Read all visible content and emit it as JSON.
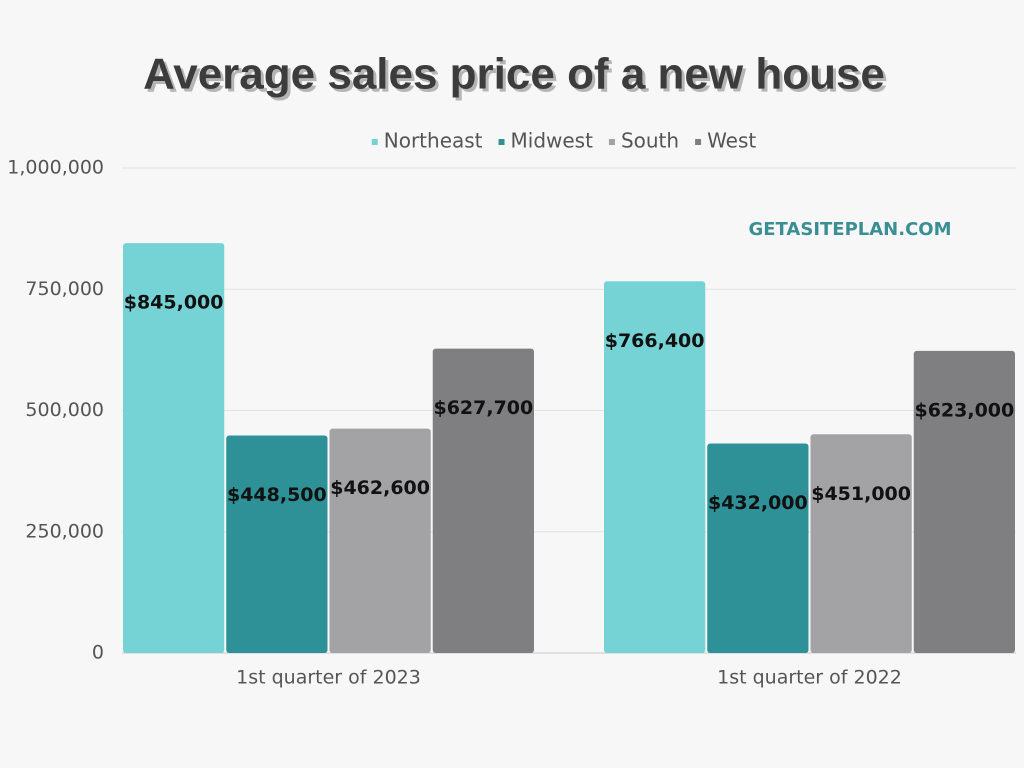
{
  "chart_data": {
    "type": "bar",
    "title": "Average sales price of a new house",
    "categories": [
      "1st quarter of 2023",
      "1st quarter of 2022"
    ],
    "series": [
      {
        "name": "Northeast",
        "color": "#75d3d5",
        "values": [
          845000,
          766400
        ],
        "value_labels": [
          "$845,000",
          "$766,400"
        ]
      },
      {
        "name": "Midwest",
        "color": "#2e9198",
        "values": [
          448500,
          432000
        ],
        "value_labels": [
          "$448,500",
          "$432,000"
        ]
      },
      {
        "name": "South",
        "color": "#a3a3a5",
        "values": [
          462600,
          451000
        ],
        "value_labels": [
          "$462,600",
          "$451,000"
        ]
      },
      {
        "name": "West",
        "color": "#7f7f81",
        "values": [
          627700,
          623000
        ],
        "value_labels": [
          "$627,700",
          "$623,000"
        ]
      }
    ],
    "ylim": [
      0,
      1000000
    ],
    "yticks": [
      0,
      {
        "value": 250000,
        "label": "250,000"
      },
      {
        "value": 500000,
        "label": "500,000"
      },
      {
        "value": 750000,
        "label": "750,000"
      },
      {
        "value": 1000000,
        "label": "1,000,000"
      }
    ],
    "grid": true,
    "legend": "top",
    "watermark": "GETASITEPLAN.COM"
  }
}
